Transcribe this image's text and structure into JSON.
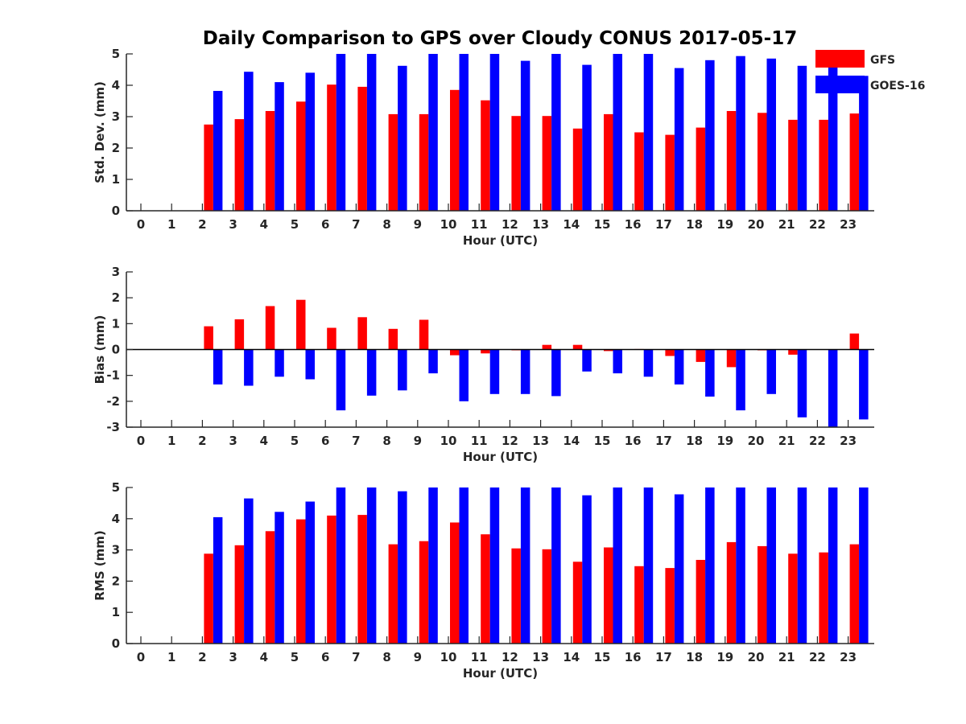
{
  "chart_data": {
    "title": "Daily Comparison to GPS over Cloudy CONUS 2017-05-17",
    "legend": {
      "placement": "top-right",
      "entries": [
        {
          "name": "GFS",
          "color": "#ff0000"
        },
        {
          "name": "GOES-16",
          "color": "#0000ff"
        }
      ]
    },
    "panels": [
      {
        "type": "bar",
        "ylabel": "Std. Dev. (mm)",
        "xlabel": "Hour (UTC)",
        "ylim": [
          0,
          5
        ],
        "yticks": [
          "0",
          "1",
          "2",
          "3",
          "4",
          "5"
        ],
        "categories": [
          "0",
          "1",
          "2",
          "3",
          "4",
          "5",
          "6",
          "7",
          "8",
          "9",
          "10",
          "11",
          "12",
          "13",
          "14",
          "15",
          "16",
          "17",
          "18",
          "19",
          "20",
          "21",
          "22",
          "23"
        ],
        "series": [
          {
            "name": "GFS",
            "color": "#ff0000",
            "values": [
              0,
              0,
              2.75,
              2.92,
              3.18,
              3.48,
              4.02,
              3.95,
              3.08,
              3.08,
              3.85,
              3.52,
              3.02,
              3.02,
              2.62,
              3.08,
              2.5,
              2.42,
              2.65,
              3.18,
              3.12,
              2.9,
              2.9,
              3.1
            ]
          },
          {
            "name": "GOES-16",
            "color": "#0000ff",
            "values": [
              0,
              0,
              3.82,
              4.43,
              4.1,
              4.4,
              5,
              5,
              4.62,
              5,
              5,
              5,
              4.78,
              5,
              4.65,
              5,
              5,
              4.55,
              4.8,
              4.93,
              4.85,
              4.62,
              5,
              4.3
            ]
          }
        ]
      },
      {
        "type": "bar",
        "ylabel": "Bias (mm)",
        "xlabel": "Hour (UTC)",
        "ylim": [
          -3,
          3
        ],
        "yticks": [
          "-3",
          "-2",
          "-1",
          "0",
          "1",
          "2",
          "3"
        ],
        "categories": [
          "0",
          "1",
          "2",
          "3",
          "4",
          "5",
          "6",
          "7",
          "8",
          "9",
          "10",
          "11",
          "12",
          "13",
          "14",
          "15",
          "16",
          "17",
          "18",
          "19",
          "20",
          "21",
          "22",
          "23"
        ],
        "series": [
          {
            "name": "GFS",
            "color": "#ff0000",
            "values": [
              0,
              0,
              0.9,
              1.17,
              1.68,
              1.92,
              0.84,
              1.25,
              0.8,
              1.15,
              -0.22,
              -0.15,
              -0.03,
              0.18,
              0.18,
              -0.06,
              0.02,
              -0.25,
              -0.48,
              -0.68,
              -0.03,
              -0.2,
              0,
              0.62
            ]
          },
          {
            "name": "GOES-16",
            "color": "#0000ff",
            "values": [
              0,
              0,
              -1.35,
              -1.4,
              -1.05,
              -1.15,
              -2.35,
              -1.78,
              -1.58,
              -0.92,
              -2.0,
              -1.72,
              -1.72,
              -1.8,
              -0.85,
              -0.92,
              -1.05,
              -1.35,
              -1.82,
              -2.35,
              -1.72,
              -2.62,
              -3,
              -2.7
            ]
          }
        ]
      },
      {
        "type": "bar",
        "ylabel": "RMS (mm)",
        "xlabel": "Hour (UTC)",
        "ylim": [
          0,
          5
        ],
        "yticks": [
          "0",
          "1",
          "2",
          "3",
          "4",
          "5"
        ],
        "categories": [
          "0",
          "1",
          "2",
          "3",
          "4",
          "5",
          "6",
          "7",
          "8",
          "9",
          "10",
          "11",
          "12",
          "13",
          "14",
          "15",
          "16",
          "17",
          "18",
          "19",
          "20",
          "21",
          "22",
          "23"
        ],
        "series": [
          {
            "name": "GFS",
            "color": "#ff0000",
            "values": [
              0,
              0,
              2.88,
              3.15,
              3.6,
              3.98,
              4.1,
              4.12,
              3.18,
              3.28,
              3.88,
              3.5,
              3.05,
              3.02,
              2.62,
              3.08,
              2.48,
              2.42,
              2.68,
              3.25,
              3.12,
              2.88,
              2.92,
              3.18
            ]
          },
          {
            "name": "GOES-16",
            "color": "#0000ff",
            "values": [
              0,
              0,
              4.05,
              4.65,
              4.22,
              4.55,
              5,
              5,
              4.88,
              5,
              5,
              5,
              5,
              5,
              4.75,
              5,
              5,
              4.78,
              5,
              5,
              5,
              5,
              5,
              5
            ]
          }
        ]
      }
    ]
  }
}
